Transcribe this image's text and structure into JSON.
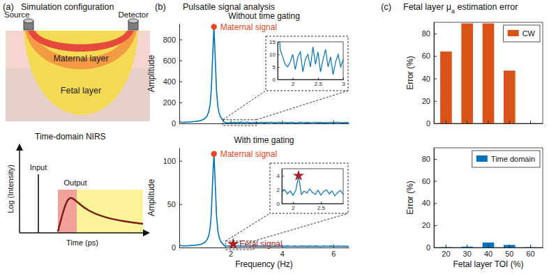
{
  "panels": [
    {
      "label": "(a)",
      "title": [
        {
          "text": "Simulation configuration"
        }
      ]
    },
    {
      "label": "(b)",
      "title": [
        {
          "text": "Pulsatile signal analysis"
        }
      ]
    },
    {
      "label": "(c)",
      "title": [
        {
          "text": "Fetal layer μ"
        },
        {
          "text": "a",
          "subscript": true
        },
        {
          "text": " estimation error"
        }
      ]
    }
  ],
  "diagram": {
    "source": "Source",
    "detector": "Detector",
    "layers": [
      "Maternal layer",
      "Fetal layer"
    ],
    "schematic_title": "Time-domain NIRS",
    "input": "Input",
    "output": "Output",
    "ylabel": "Log (Intensity)",
    "xlabel": "Time (ps)"
  },
  "chart_data": [
    {
      "type": "line",
      "title": "Without time gating",
      "ylabel": "Amplitude",
      "x": [
        0,
        0.05,
        0.1,
        0.15,
        0.2,
        0.25,
        0.3,
        0.35,
        0.4,
        0.45,
        0.5,
        0.55,
        0.6,
        0.65,
        0.7,
        0.75,
        0.8,
        0.85,
        0.9,
        0.95,
        1,
        1.05,
        1.1,
        1.15,
        1.2,
        1.25,
        1.3,
        1.35,
        1.4,
        1.45,
        1.5,
        1.55,
        1.6,
        1.65,
        1.7,
        1.75,
        1.8,
        1.85,
        1.9,
        1.95,
        2,
        2.05,
        2.1,
        2.15,
        2.2,
        2.25,
        2.3,
        2.35,
        2.4,
        2.45,
        2.5,
        2.55,
        2.6,
        2.65,
        2.7,
        2.75,
        2.8,
        2.85,
        2.9,
        2.95,
        3,
        3.1,
        3.2,
        3.3,
        3.4,
        3.5,
        3.6,
        3.7,
        3.8,
        3.9,
        4,
        4.1,
        4.2,
        4.3,
        4.4,
        4.5,
        4.6,
        4.7,
        4.8,
        4.9,
        5,
        5.1,
        5.2,
        5.3,
        5.4,
        5.5,
        5.6,
        5.7,
        5.8,
        5.9,
        6,
        6.1,
        6.2,
        6.3,
        6.4,
        6.5,
        6.6
      ],
      "values": [
        20,
        15,
        12,
        10,
        11,
        12,
        13,
        12,
        14,
        15,
        16,
        17,
        18,
        19,
        21,
        23,
        26,
        29,
        34,
        40,
        48,
        60,
        80,
        115,
        180,
        330,
        650,
        920,
        620,
        310,
        165,
        100,
        65,
        45,
        30,
        12,
        9,
        6,
        5,
        7,
        10,
        4,
        9,
        11,
        3,
        8,
        10,
        5,
        13,
        6,
        11,
        3,
        8,
        12,
        5,
        9,
        2,
        7,
        10,
        5,
        8,
        7,
        10,
        6,
        9,
        8,
        11,
        5,
        8,
        9,
        7,
        10,
        6,
        8,
        9,
        5,
        7,
        11,
        8,
        6,
        9,
        7,
        8,
        10,
        6,
        9,
        5,
        8,
        7,
        10,
        6,
        8,
        9,
        7,
        6,
        8,
        7
      ],
      "color": "#0072bd",
      "xlim": [
        0,
        6.6
      ],
      "ylim": [
        0,
        950
      ],
      "xticks": [
        2,
        4,
        6
      ],
      "yticks": [
        0,
        200,
        400,
        600,
        800
      ],
      "tick_labels": "y",
      "annotations": [
        {
          "text": "Maternal signal",
          "x": 1.35,
          "y": 920,
          "marker": "circle",
          "color": "#e8461e"
        }
      ],
      "inset": {
        "xlim": [
          1.7,
          3
        ],
        "ylim": [
          0,
          15
        ],
        "xticks": [
          2,
          2.5,
          3
        ],
        "yticks": [
          0,
          5,
          10,
          15
        ]
      }
    },
    {
      "type": "line",
      "title": "With time gating",
      "xlabel": "Frequency (Hz)",
      "ylabel": "Amplitude",
      "x": [
        0,
        0.05,
        0.1,
        0.15,
        0.2,
        0.25,
        0.3,
        0.35,
        0.4,
        0.45,
        0.5,
        0.55,
        0.6,
        0.65,
        0.7,
        0.75,
        0.8,
        0.85,
        0.9,
        0.95,
        1,
        1.05,
        1.1,
        1.15,
        1.2,
        1.25,
        1.3,
        1.35,
        1.4,
        1.45,
        1.5,
        1.55,
        1.6,
        1.65,
        1.7,
        1.75,
        1.8,
        1.85,
        1.9,
        1.95,
        2,
        2.05,
        2.1,
        2.15,
        2.2,
        2.25,
        2.3,
        2.35,
        2.4,
        2.45,
        2.5,
        2.55,
        2.6,
        2.65,
        2.7,
        2.75,
        2.8,
        2.85,
        2.9,
        2.95,
        3,
        3.1,
        3.2,
        3.3,
        3.4,
        3.5,
        3.6,
        3.7,
        3.8,
        3.9,
        4,
        4.1,
        4.2,
        4.3,
        4.4,
        4.5,
        4.6,
        4.7,
        4.8,
        4.9,
        5,
        5.1,
        5.2,
        5.3,
        5.4,
        5.5,
        5.6,
        5.7,
        5.8,
        5.9,
        6,
        6.1,
        6.2,
        6.3,
        6.4,
        6.5,
        6.6
      ],
      "values": [
        3,
        2.5,
        2,
        1.8,
        1.8,
        1.9,
        2,
        2,
        2.1,
        2.2,
        2.3,
        2.4,
        2.5,
        2.7,
        2.9,
        3.1,
        3.5,
        3.9,
        4.5,
        5.2,
        6.2,
        7.8,
        10,
        14,
        22,
        40,
        78,
        108,
        74,
        37,
        20,
        12,
        8,
        5.5,
        4,
        2.2,
        1.6,
        2,
        1.4,
        1.8,
        1.2,
        1.9,
        4,
        1.3,
        1.8,
        1.5,
        2.1,
        1.6,
        1.3,
        1.9,
        1.2,
        1.7,
        2,
        1.4,
        1.8,
        1.1,
        1.6,
        1.9,
        1.3,
        1.5,
        1.7,
        1.5,
        1.8,
        1.3,
        1.6,
        1.9,
        1.2,
        1.7,
        1.4,
        1.8,
        1.5,
        1.3,
        1.9,
        1.6,
        1.4,
        1.7,
        1.2,
        1.8,
        1.5,
        1.6,
        1.3,
        1.9,
        1.4,
        1.7,
        1.5,
        1.2,
        1.8,
        1.6,
        1.4,
        1.7,
        1.3,
        1.5,
        1.8,
        1.4,
        1.6,
        1.3,
        1.5
      ],
      "color": "#0072bd",
      "xlim": [
        0,
        6.6
      ],
      "ylim": [
        0,
        115
      ],
      "xticks": [
        2,
        4,
        6
      ],
      "yticks": [
        0,
        50,
        100
      ],
      "annotations": [
        {
          "text": "Maternal signal",
          "x": 1.35,
          "y": 108,
          "marker": "circle",
          "color": "#e8461e"
        },
        {
          "text": "Fetal signal",
          "x": 2.1,
          "y": 4,
          "marker": "star",
          "color": "#b01c22"
        }
      ],
      "inset": {
        "xlim": [
          1.8,
          2.9
        ],
        "ylim": [
          0,
          5
        ],
        "xticks": [
          2,
          2.5
        ],
        "yticks": [
          0,
          2,
          4
        ]
      }
    },
    {
      "type": "bar",
      "ylabel": "Error (%)",
      "categories": [
        "20",
        "30",
        "40",
        "50",
        "60"
      ],
      "series": [
        {
          "name": "CW",
          "color": "#d95319",
          "values": [
            64,
            89,
            89,
            47,
            0
          ]
        }
      ],
      "ylim": [
        0,
        90
      ],
      "yticks": [
        0,
        20,
        40,
        60,
        80
      ],
      "legend": "upper right",
      "tick_labels": "y"
    },
    {
      "type": "bar",
      "xlabel": "Fetal layer TOI (%)",
      "ylabel": "Error (%)",
      "categories": [
        "20",
        "30",
        "40",
        "50",
        "60"
      ],
      "series": [
        {
          "name": "Time domain",
          "color": "#0072bd",
          "values": [
            0.3,
            0.8,
            4.5,
            2.3,
            0.2
          ]
        }
      ],
      "ylim": [
        0,
        90
      ],
      "yticks": [
        0,
        20,
        40,
        60,
        80
      ],
      "legend": "upper right"
    }
  ]
}
